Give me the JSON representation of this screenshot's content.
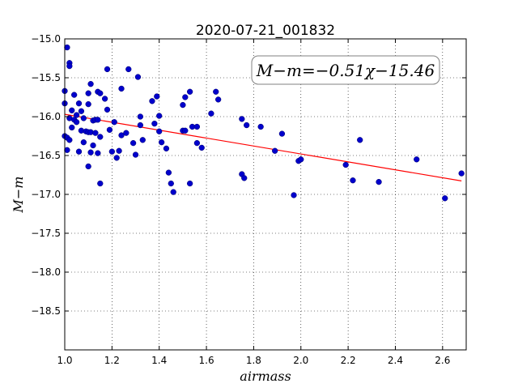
{
  "chart_data": {
    "type": "scatter",
    "title": "2020-07-21_001832",
    "xlabel": "airmass",
    "ylabel": "M−m",
    "annotation": "M−m=−0.51χ−15.46",
    "xlim": [
      1.0,
      2.7
    ],
    "ylim": [
      -19.0,
      -15.0
    ],
    "y_inverted": true,
    "x_ticks": [
      1.0,
      1.2,
      1.4,
      1.6,
      1.8,
      2.0,
      2.2,
      2.4,
      2.6
    ],
    "x_tick_labels": [
      "1.0",
      "1.2",
      "1.4",
      "1.6",
      "1.8",
      "2.0",
      "2.2",
      "2.4",
      "2.6"
    ],
    "y_ticks": [
      -15.0,
      -15.5,
      -16.0,
      -16.5,
      -17.0,
      -17.5,
      -18.0,
      -18.5
    ],
    "y_tick_labels": [
      "−15.0",
      "−15.5",
      "−16.0",
      "−16.5",
      "−17.0",
      "−17.5",
      "−18.0",
      "−18.5"
    ],
    "grid": true,
    "colors": {
      "points": "#0000cc",
      "fit": "#ff0000"
    },
    "fit": {
      "slope": -0.51,
      "intercept": -15.46,
      "x_range": [
        1.0,
        2.68
      ]
    },
    "series": [
      {
        "points": [
          [
            1.0,
            -15.67
          ],
          [
            1.0,
            -15.83
          ],
          [
            1.0,
            -16.25
          ],
          [
            1.01,
            -16.27
          ],
          [
            1.01,
            -16.43
          ],
          [
            1.01,
            -15.11
          ],
          [
            1.02,
            -16.02
          ],
          [
            1.02,
            -16.3
          ],
          [
            1.02,
            -15.31
          ],
          [
            1.02,
            -15.35
          ],
          [
            1.03,
            -15.92
          ],
          [
            1.03,
            -16.14
          ],
          [
            1.04,
            -15.72
          ],
          [
            1.04,
            -16.04
          ],
          [
            1.05,
            -15.98
          ],
          [
            1.05,
            -16.07
          ],
          [
            1.06,
            -15.83
          ],
          [
            1.06,
            -16.45
          ],
          [
            1.07,
            -15.93
          ],
          [
            1.07,
            -16.18
          ],
          [
            1.08,
            -16.02
          ],
          [
            1.08,
            -16.33
          ],
          [
            1.09,
            -16.19
          ],
          [
            1.1,
            -15.7
          ],
          [
            1.1,
            -15.84
          ],
          [
            1.1,
            -16.2
          ],
          [
            1.1,
            -16.64
          ],
          [
            1.11,
            -16.2
          ],
          [
            1.11,
            -16.46
          ],
          [
            1.11,
            -15.58
          ],
          [
            1.12,
            -16.37
          ],
          [
            1.12,
            -16.05
          ],
          [
            1.13,
            -16.04
          ],
          [
            1.13,
            -16.21
          ],
          [
            1.14,
            -15.68
          ],
          [
            1.14,
            -16.04
          ],
          [
            1.14,
            -16.47
          ],
          [
            1.15,
            -15.7
          ],
          [
            1.15,
            -16.26
          ],
          [
            1.15,
            -16.86
          ],
          [
            1.17,
            -15.77
          ],
          [
            1.18,
            -15.91
          ],
          [
            1.18,
            -15.39
          ],
          [
            1.19,
            -16.17
          ],
          [
            1.2,
            -16.45
          ],
          [
            1.21,
            -16.07
          ],
          [
            1.22,
            -16.53
          ],
          [
            1.23,
            -16.44
          ],
          [
            1.24,
            -15.64
          ],
          [
            1.24,
            -16.24
          ],
          [
            1.26,
            -16.21
          ],
          [
            1.27,
            -15.39
          ],
          [
            1.29,
            -16.34
          ],
          [
            1.3,
            -16.49
          ],
          [
            1.31,
            -15.49
          ],
          [
            1.32,
            -16.0
          ],
          [
            1.32,
            -16.11
          ],
          [
            1.33,
            -16.3
          ],
          [
            1.37,
            -15.8
          ],
          [
            1.38,
            -16.09
          ],
          [
            1.39,
            -15.74
          ],
          [
            1.4,
            -15.99
          ],
          [
            1.4,
            -16.19
          ],
          [
            1.41,
            -16.33
          ],
          [
            1.43,
            -16.41
          ],
          [
            1.44,
            -16.72
          ],
          [
            1.45,
            -16.86
          ],
          [
            1.46,
            -16.97
          ],
          [
            1.5,
            -15.85
          ],
          [
            1.5,
            -16.18
          ],
          [
            1.51,
            -16.18
          ],
          [
            1.51,
            -15.75
          ],
          [
            1.53,
            -16.86
          ],
          [
            1.53,
            -15.68
          ],
          [
            1.54,
            -16.13
          ],
          [
            1.56,
            -16.13
          ],
          [
            1.56,
            -16.34
          ],
          [
            1.58,
            -16.4
          ],
          [
            1.62,
            -15.96
          ],
          [
            1.64,
            -15.68
          ],
          [
            1.65,
            -15.78
          ],
          [
            1.75,
            -16.74
          ],
          [
            1.75,
            -16.03
          ],
          [
            1.76,
            -16.79
          ],
          [
            1.77,
            -16.11
          ],
          [
            1.83,
            -16.13
          ],
          [
            1.89,
            -16.44
          ],
          [
            1.92,
            -16.22
          ],
          [
            1.97,
            -17.01
          ],
          [
            1.99,
            -16.57
          ],
          [
            2.0,
            -16.55
          ],
          [
            2.19,
            -16.62
          ],
          [
            2.22,
            -16.82
          ],
          [
            2.25,
            -16.3
          ],
          [
            2.33,
            -16.84
          ],
          [
            2.49,
            -16.55
          ],
          [
            2.61,
            -17.05
          ],
          [
            2.68,
            -16.73
          ]
        ]
      }
    ]
  }
}
